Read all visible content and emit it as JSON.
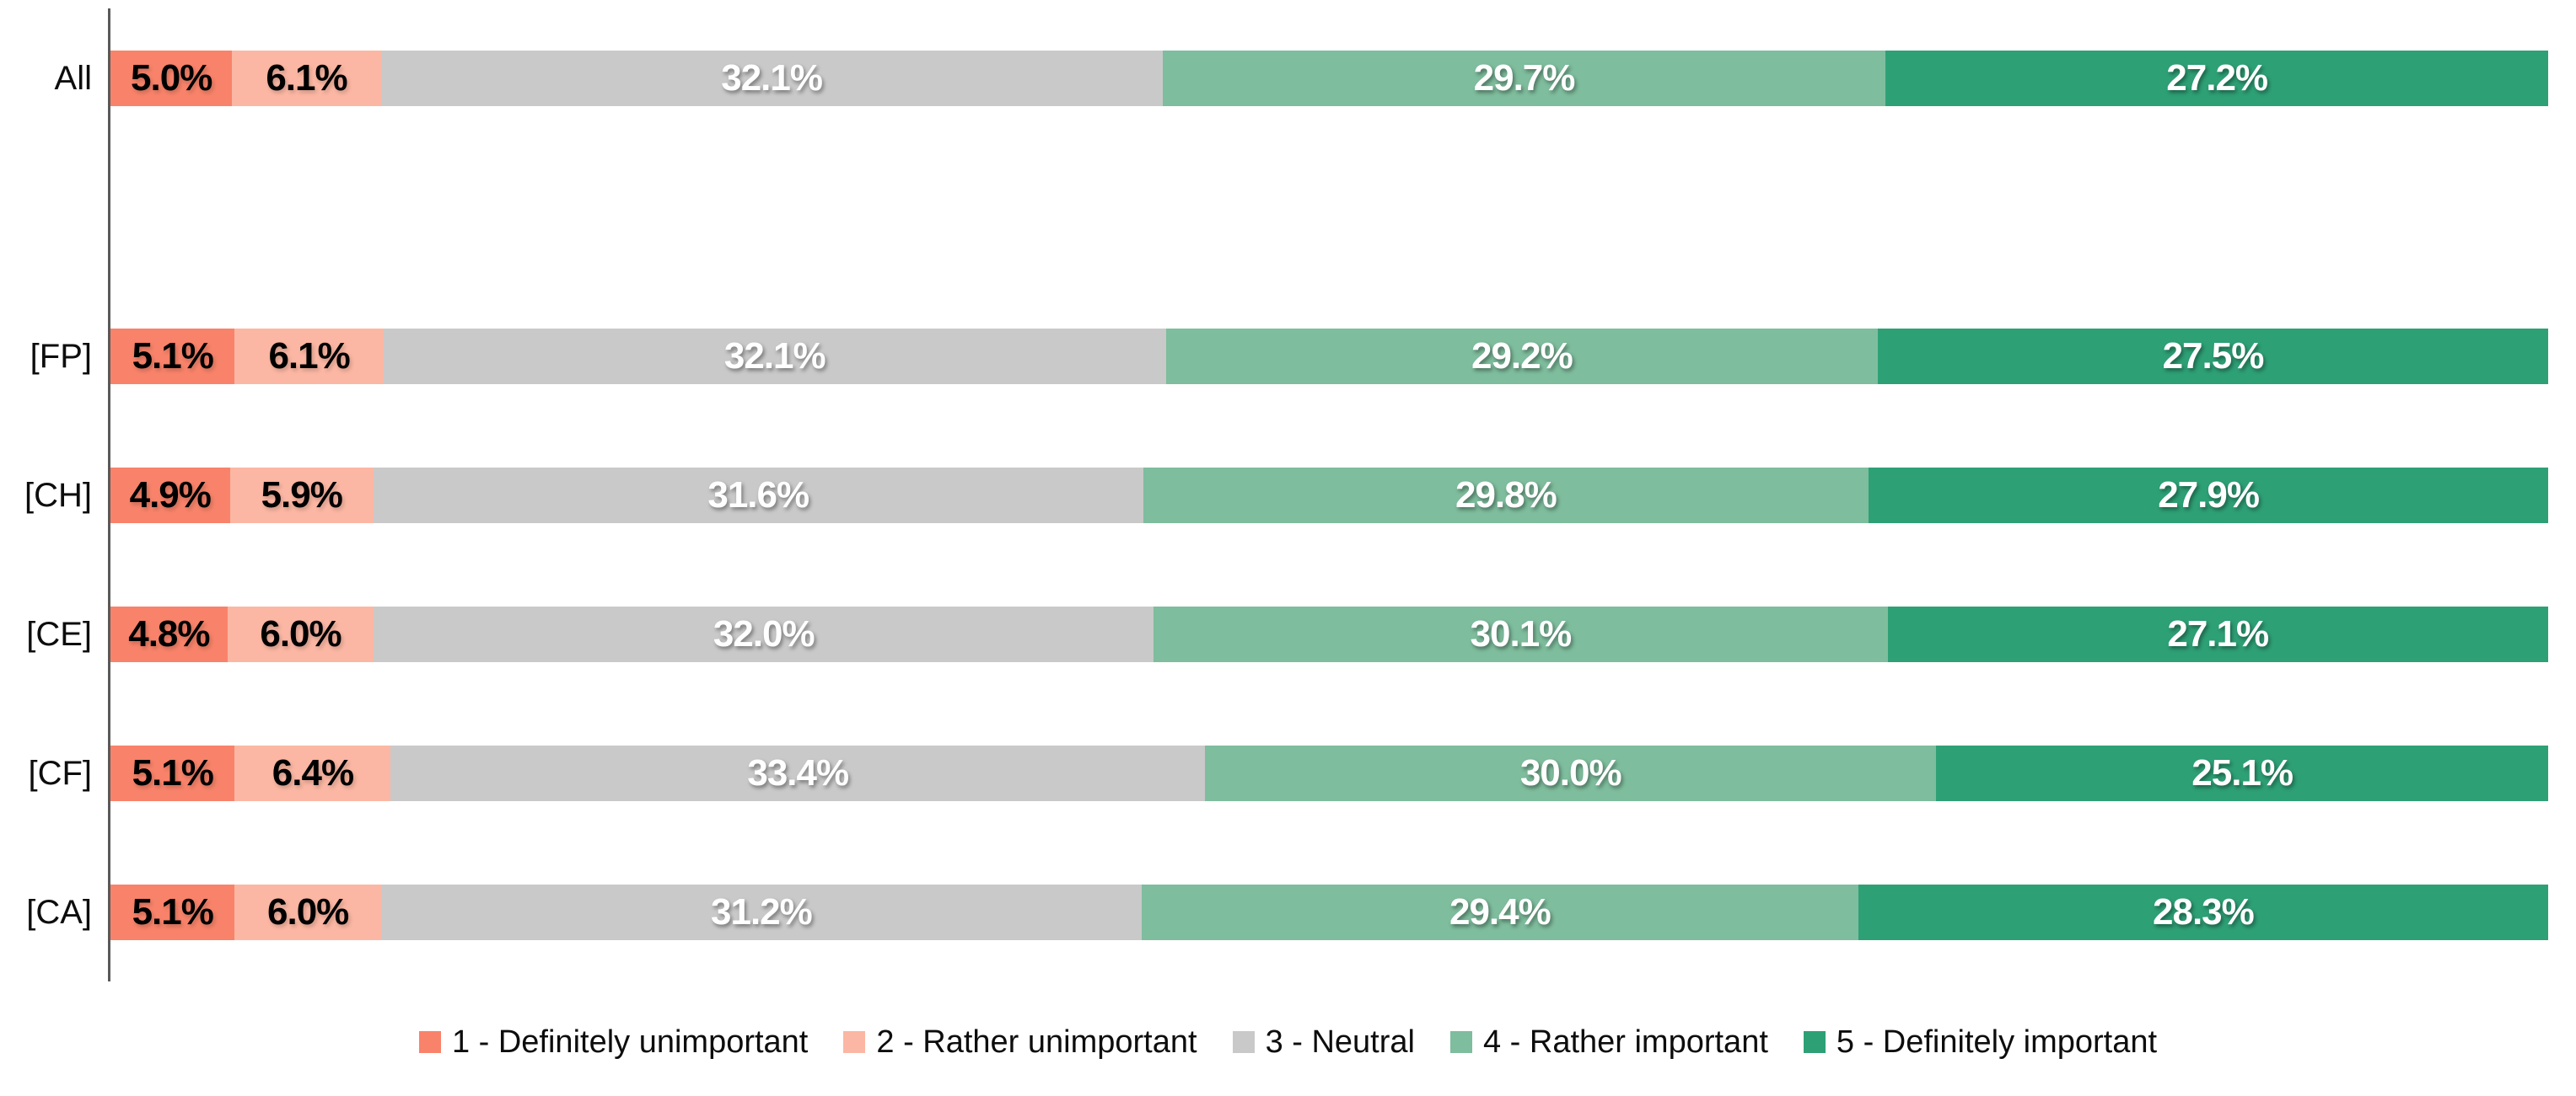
{
  "chart_data": {
    "type": "bar",
    "orientation": "horizontal",
    "stacked": true,
    "stacked_100_percent": true,
    "value_suffix": "%",
    "grid": false,
    "legend_position": "bottom",
    "axis_color": "#595959",
    "gap_row_after_first_category": true,
    "categories": [
      "All",
      "[FP]",
      "[CH]",
      "[CE]",
      "[CF]",
      "[CA]"
    ],
    "series": [
      {
        "name": "1 - Definitely unimportant",
        "color": "#F8836A",
        "label_color": "#000000",
        "values": [
          5.0,
          5.1,
          4.9,
          4.8,
          5.1,
          5.1
        ]
      },
      {
        "name": "2 - Rather unimportant",
        "color": "#FBB7A3",
        "label_color": "#000000",
        "values": [
          6.1,
          6.1,
          5.9,
          6.0,
          6.4,
          6.0
        ]
      },
      {
        "name": "3 - Neutral",
        "color": "#C9C9C9",
        "label_color": "#FFFFFF",
        "values": [
          32.1,
          32.1,
          31.6,
          32.0,
          33.4,
          31.2
        ]
      },
      {
        "name": "4 - Rather important",
        "color": "#7EBD9D",
        "label_color": "#FFFFFF",
        "values": [
          29.7,
          29.2,
          29.8,
          30.1,
          30.0,
          29.4
        ]
      },
      {
        "name": "5 - Definitely important",
        "color": "#2EA076",
        "label_color": "#FFFFFF",
        "values": [
          27.2,
          27.5,
          27.9,
          27.1,
          25.1,
          28.3
        ]
      }
    ]
  }
}
